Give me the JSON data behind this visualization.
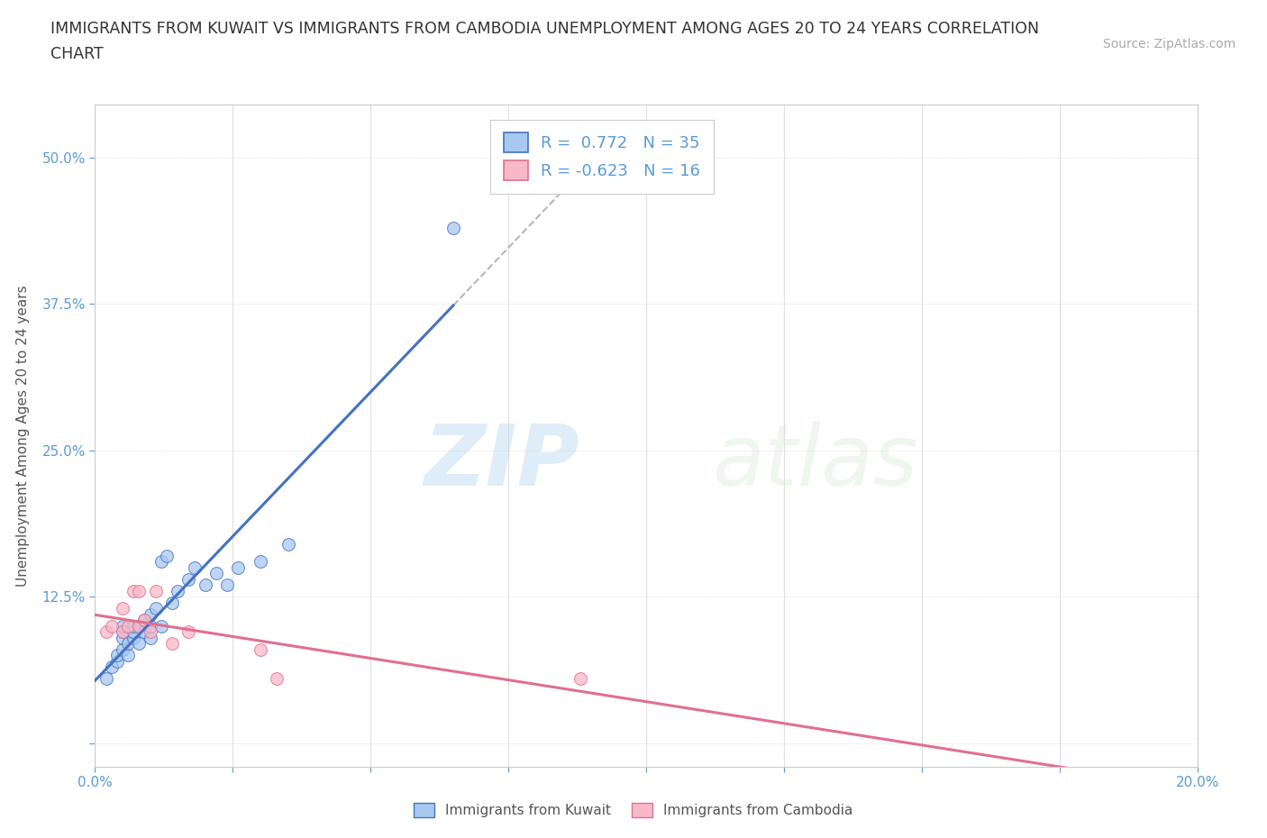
{
  "title_line1": "IMMIGRANTS FROM KUWAIT VS IMMIGRANTS FROM CAMBODIA UNEMPLOYMENT AMONG AGES 20 TO 24 YEARS CORRELATION",
  "title_line2": "CHART",
  "source_text": "Source: ZipAtlas.com",
  "ylabel": "Unemployment Among Ages 20 to 24 years",
  "xlim": [
    0.0,
    0.2
  ],
  "ylim": [
    -0.02,
    0.545
  ],
  "xticks": [
    0.0,
    0.025,
    0.05,
    0.075,
    0.1,
    0.125,
    0.15,
    0.175,
    0.2
  ],
  "yticks": [
    0.0,
    0.125,
    0.25,
    0.375,
    0.5
  ],
  "x_tick_labels": [
    "0.0%",
    "",
    "",
    "",
    "",
    "",
    "",
    "",
    "20.0%"
  ],
  "y_tick_labels": [
    "",
    "12.5%",
    "25.0%",
    "37.5%",
    "50.0%"
  ],
  "kuwait_color": "#a8c8f0",
  "cambodia_color": "#f8b8c8",
  "kuwait_line_color": "#4472c4",
  "cambodia_line_color": "#e07090",
  "R_kuwait": 0.772,
  "N_kuwait": 35,
  "R_cambodia": -0.623,
  "N_cambodia": 16,
  "watermark_zip": "ZIP",
  "watermark_atlas": "atlas",
  "kuwait_x": [
    0.002,
    0.003,
    0.004,
    0.004,
    0.005,
    0.005,
    0.005,
    0.005,
    0.006,
    0.006,
    0.007,
    0.007,
    0.007,
    0.008,
    0.008,
    0.009,
    0.009,
    0.01,
    0.01,
    0.01,
    0.011,
    0.012,
    0.012,
    0.013,
    0.014,
    0.015,
    0.017,
    0.018,
    0.02,
    0.022,
    0.024,
    0.026,
    0.03,
    0.035,
    0.065
  ],
  "kuwait_y": [
    0.055,
    0.065,
    0.07,
    0.075,
    0.08,
    0.09,
    0.095,
    0.1,
    0.075,
    0.085,
    0.09,
    0.095,
    0.1,
    0.085,
    0.1,
    0.095,
    0.105,
    0.09,
    0.1,
    0.11,
    0.115,
    0.1,
    0.155,
    0.16,
    0.12,
    0.13,
    0.14,
    0.15,
    0.135,
    0.145,
    0.135,
    0.15,
    0.155,
    0.17,
    0.44
  ],
  "cambodia_x": [
    0.002,
    0.003,
    0.005,
    0.005,
    0.006,
    0.007,
    0.008,
    0.008,
    0.009,
    0.01,
    0.011,
    0.014,
    0.017,
    0.03,
    0.033,
    0.088
  ],
  "cambodia_y": [
    0.095,
    0.1,
    0.095,
    0.115,
    0.1,
    0.13,
    0.13,
    0.1,
    0.105,
    0.095,
    0.13,
    0.085,
    0.095,
    0.08,
    0.055,
    0.055
  ],
  "background_color": "#ffffff",
  "grid_color": "#e0e0e0",
  "grid_style": "dotted"
}
